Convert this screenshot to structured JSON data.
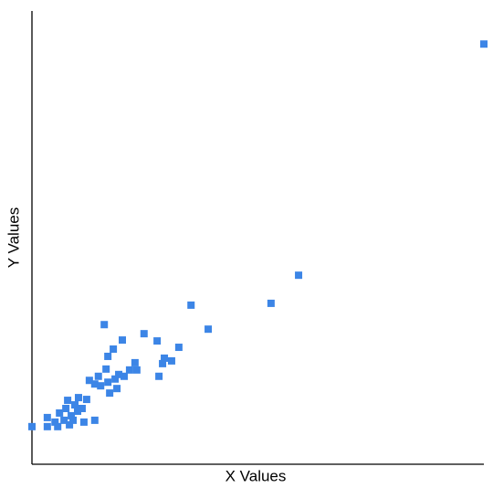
{
  "chart_data": {
    "type": "scatter",
    "x_label": "X Values",
    "y_label": "Y Values",
    "color": "#3c85e6",
    "xlim": [
      0,
      100
    ],
    "ylim": [
      0,
      100
    ],
    "x": [
      0,
      3.4,
      3.4,
      5.1,
      5.7,
      6.1,
      7.1,
      7.5,
      7.9,
      8.3,
      8.7,
      9.1,
      9.5,
      10.1,
      10.3,
      11.1,
      11.5,
      12.1,
      12.7,
      13.9,
      13.9,
      14.7,
      15.2,
      16.0,
      16.4,
      16.8,
      16.8,
      17.2,
      18.0,
      18.4,
      18.8,
      19.2,
      20.0,
      20.4,
      21.6,
      22.8,
      23.2,
      24.8,
      27.7,
      28.1,
      28.9,
      29.3,
      30.9,
      32.5,
      35.2,
      39.0,
      52.9,
      59.0,
      100
    ],
    "values": [
      8.3,
      10.3,
      8.3,
      9.3,
      8.3,
      11.3,
      9.7,
      12.3,
      14.1,
      8.7,
      10.7,
      9.7,
      13.1,
      11.7,
      14.7,
      12.3,
      9.3,
      14.3,
      18.5,
      9.7,
      17.7,
      19.4,
      17.3,
      30.8,
      21.0,
      18.1,
      23.8,
      15.7,
      25.4,
      18.8,
      16.7,
      19.8,
      27.4,
      19.4,
      20.8,
      22.4,
      20.8,
      28.8,
      27.2,
      19.4,
      22.2,
      23.4,
      22.8,
      25.8,
      35.1,
      29.8,
      35.5,
      41.7,
      92.7
    ]
  }
}
